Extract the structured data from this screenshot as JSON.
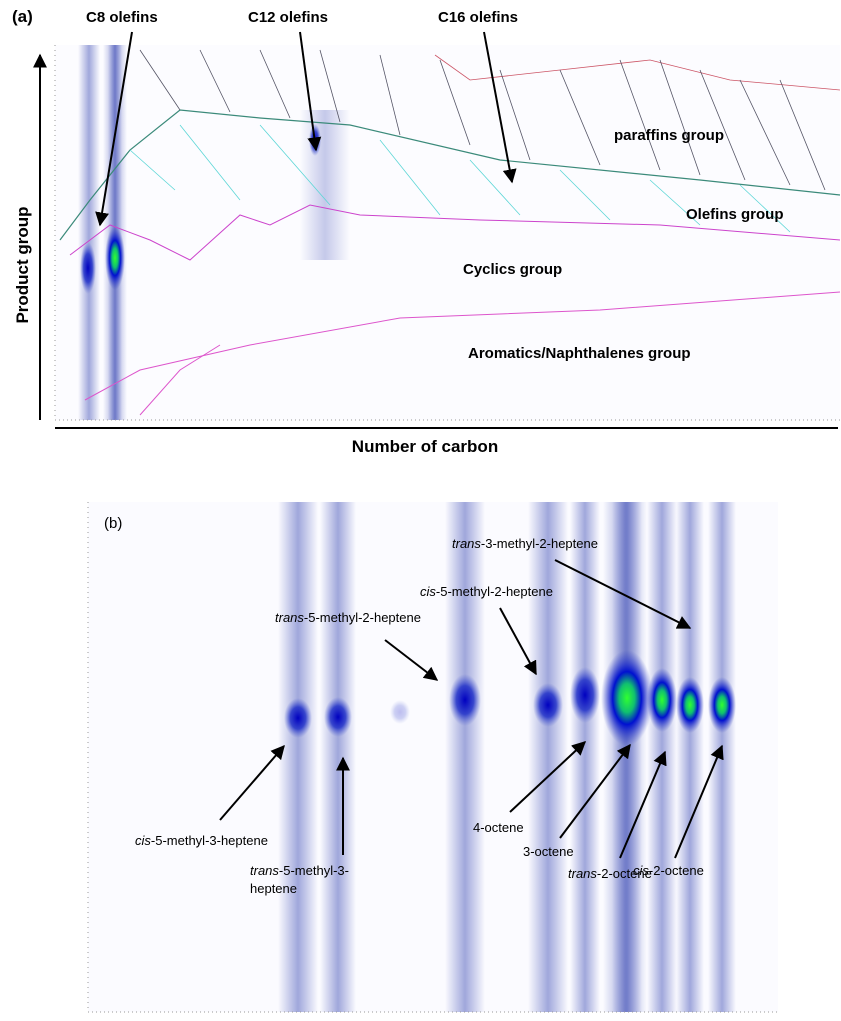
{
  "panel_a": {
    "label": "(a)",
    "peak_labels": [
      "C8 olefins",
      "C12 olefins",
      "C16 olefins"
    ],
    "groups": [
      "paraffins group",
      "Olefins group",
      "Cyclics group",
      "Aromatics/Naphthalenes group"
    ],
    "y_axis_label": "Product group",
    "x_axis_label": "Number of carbon"
  },
  "panel_b": {
    "label": "(b)",
    "compounds": [
      {
        "prefix": "cis",
        "rest": "-5-methyl-3-heptene"
      },
      {
        "prefix": "trans",
        "rest": "-5-methyl-3-",
        "line2": "heptene"
      },
      {
        "prefix": "trans",
        "rest": "-5-methyl-2-heptene"
      },
      {
        "prefix": "cis",
        "rest": "-5-methyl-2-heptene"
      },
      {
        "prefix": "trans",
        "rest": "-3-methyl-2-heptene"
      },
      {
        "prefix": "4-octene"
      },
      {
        "prefix": "3-octene"
      },
      {
        "prefix": "trans",
        "rest": "-2-octene"
      },
      {
        "prefix": "cis",
        "rest": "-2-octene"
      }
    ]
  }
}
